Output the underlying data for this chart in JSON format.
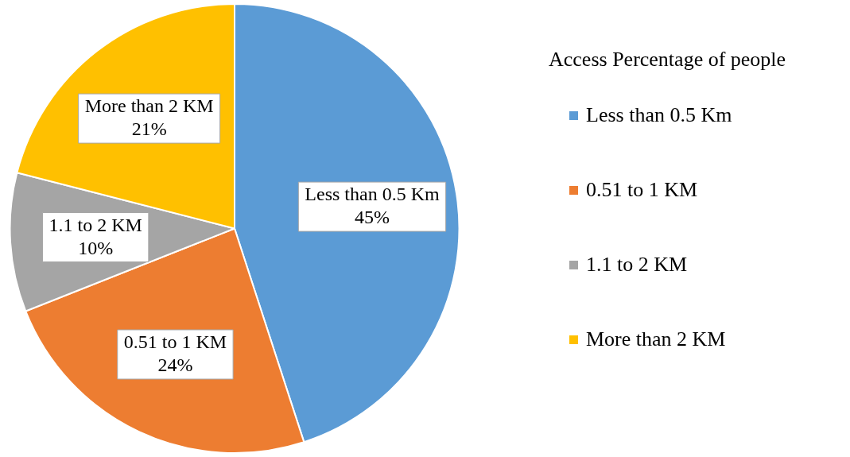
{
  "chart_data": {
    "type": "pie",
    "legend_title": "Access Percentage of people",
    "legend": "right",
    "categories": [
      "Less than 0.5 Km",
      "0.51 to 1 KM",
      "1.1 to 2 KM",
      "More than 2 KM"
    ],
    "values": [
      45,
      24,
      10,
      21
    ],
    "value_labels": [
      "45%",
      "24%",
      "10%",
      "21%"
    ],
    "colors": [
      "#5b9bd5",
      "#ed7d31",
      "#a5a5a5",
      "#ffc000"
    ]
  }
}
